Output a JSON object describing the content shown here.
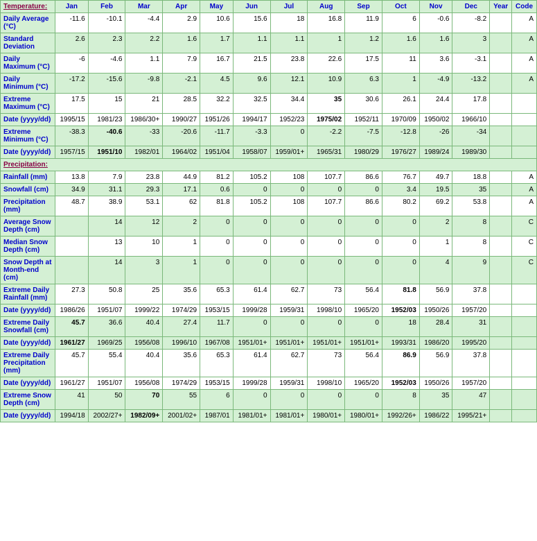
{
  "months": [
    "Jan",
    "Feb",
    "Mar",
    "Apr",
    "May",
    "Jun",
    "Jul",
    "Aug",
    "Sep",
    "Oct",
    "Nov",
    "Dec"
  ],
  "extra_cols": [
    "Year",
    "Code"
  ],
  "sections": {
    "temperature_label": "Temperature:",
    "precipitation_label": "Precipitation:"
  },
  "rows": [
    {
      "id": "daily_avg",
      "label": "Daily Average (°C)",
      "shade": false,
      "vals": [
        "-11.6",
        "-10.1",
        "-4.4",
        "2.9",
        "10.6",
        "15.6",
        "18",
        "16.8",
        "11.9",
        "6",
        "-0.6",
        "-8.2",
        "",
        "A"
      ]
    },
    {
      "id": "std_dev",
      "label": "Standard Deviation",
      "shade": true,
      "vals": [
        "2.6",
        "2.3",
        "2.2",
        "1.6",
        "1.7",
        "1.1",
        "1.1",
        "1",
        "1.2",
        "1.6",
        "1.6",
        "3",
        "",
        "A"
      ]
    },
    {
      "id": "daily_max",
      "label": "Daily Maximum (°C)",
      "shade": false,
      "vals": [
        "-6",
        "-4.6",
        "1.1",
        "7.9",
        "16.7",
        "21.5",
        "23.8",
        "22.6",
        "17.5",
        "11",
        "3.6",
        "-3.1",
        "",
        "A"
      ]
    },
    {
      "id": "daily_min",
      "label": "Daily Minimum (°C)",
      "shade": true,
      "vals": [
        "-17.2",
        "-15.6",
        "-9.8",
        "-2.1",
        "4.5",
        "9.6",
        "12.1",
        "10.9",
        "6.3",
        "1",
        "-4.9",
        "-13.2",
        "",
        "A"
      ]
    },
    {
      "id": "ext_max",
      "label": "Extreme Maximum (°C)",
      "shade": false,
      "vals": [
        "17.5",
        "15",
        "21",
        "28.5",
        "32.2",
        "32.5",
        "34.4",
        "35",
        "30.6",
        "26.1",
        "24.4",
        "17.8",
        "",
        ""
      ],
      "bold_idx": [
        7
      ]
    },
    {
      "id": "ext_max_date",
      "label": "Date (yyyy/dd)",
      "shade": false,
      "vals": [
        "1995/15",
        "1981/23",
        "1986/30+",
        "1990/27",
        "1951/26",
        "1994/17",
        "1952/23",
        "1975/02",
        "1952/11",
        "1970/09",
        "1950/02",
        "1966/10",
        "",
        ""
      ],
      "bold_idx": [
        7
      ]
    },
    {
      "id": "ext_min",
      "label": "Extreme Minimum (°C)",
      "shade": true,
      "vals": [
        "-38.3",
        "-40.6",
        "-33",
        "-20.6",
        "-11.7",
        "-3.3",
        "0",
        "-2.2",
        "-7.5",
        "-12.8",
        "-26",
        "-34",
        "",
        ""
      ],
      "bold_idx": [
        1
      ]
    },
    {
      "id": "ext_min_date",
      "label": "Date (yyyy/dd)",
      "shade": true,
      "vals": [
        "1957/15",
        "1951/10",
        "1982/01",
        "1964/02",
        "1951/04",
        "1958/07",
        "1959/01+",
        "1965/31",
        "1980/29",
        "1976/27",
        "1989/24",
        "1989/30",
        "",
        ""
      ],
      "bold_idx": [
        1
      ]
    },
    {
      "id": "rainfall",
      "label": "Rainfall (mm)",
      "shade": false,
      "vals": [
        "13.8",
        "7.9",
        "23.8",
        "44.9",
        "81.2",
        "105.2",
        "108",
        "107.7",
        "86.6",
        "76.7",
        "49.7",
        "18.8",
        "",
        "A"
      ]
    },
    {
      "id": "snowfall",
      "label": "Snowfall (cm)",
      "shade": true,
      "vals": [
        "34.9",
        "31.1",
        "29.3",
        "17.1",
        "0.6",
        "0",
        "0",
        "0",
        "0",
        "3.4",
        "19.5",
        "35",
        "",
        "A"
      ]
    },
    {
      "id": "precip",
      "label": "Precipitation (mm)",
      "shade": false,
      "vals": [
        "48.7",
        "38.9",
        "53.1",
        "62",
        "81.8",
        "105.2",
        "108",
        "107.7",
        "86.6",
        "80.2",
        "69.2",
        "53.8",
        "",
        "A"
      ]
    },
    {
      "id": "avg_snow",
      "label": "Average Snow Depth (cm)",
      "shade": true,
      "vals": [
        "",
        "14",
        "12",
        "2",
        "0",
        "0",
        "0",
        "0",
        "0",
        "0",
        "2",
        "8",
        "",
        "C"
      ]
    },
    {
      "id": "med_snow",
      "label": "Median Snow Depth (cm)",
      "shade": false,
      "vals": [
        "",
        "13",
        "10",
        "1",
        "0",
        "0",
        "0",
        "0",
        "0",
        "0",
        "1",
        "8",
        "",
        "C"
      ]
    },
    {
      "id": "end_snow",
      "label": "Snow Depth at Month-end (cm)",
      "shade": true,
      "vals": [
        "",
        "14",
        "3",
        "1",
        "0",
        "0",
        "0",
        "0",
        "0",
        "0",
        "4",
        "9",
        "",
        "C"
      ]
    },
    {
      "id": "ext_rain",
      "label": "Extreme Daily Rainfall (mm)",
      "shade": false,
      "vals": [
        "27.3",
        "50.8",
        "25",
        "35.6",
        "65.3",
        "61.4",
        "62.7",
        "73",
        "56.4",
        "81.8",
        "56.9",
        "37.8",
        "",
        ""
      ],
      "bold_idx": [
        9
      ]
    },
    {
      "id": "ext_rain_date",
      "label": "Date (yyyy/dd)",
      "shade": false,
      "vals": [
        "1986/26",
        "1951/07",
        "1999/22",
        "1974/29",
        "1953/15",
        "1999/28",
        "1959/31",
        "1998/10",
        "1965/20",
        "1952/03",
        "1950/26",
        "1957/20",
        "",
        ""
      ],
      "bold_idx": [
        9
      ]
    },
    {
      "id": "ext_snow",
      "label": "Extreme Daily Snowfall (cm)",
      "shade": true,
      "vals": [
        "45.7",
        "36.6",
        "40.4",
        "27.4",
        "11.7",
        "0",
        "0",
        "0",
        "0",
        "18",
        "28.4",
        "31",
        "",
        ""
      ],
      "bold_idx": [
        0
      ]
    },
    {
      "id": "ext_snow_date",
      "label": "Date (yyyy/dd)",
      "shade": true,
      "vals": [
        "1961/27",
        "1969/25",
        "1956/08",
        "1996/10",
        "1967/08",
        "1951/01+",
        "1951/01+",
        "1951/01+",
        "1951/01+",
        "1993/31",
        "1986/20",
        "1995/20",
        "",
        ""
      ],
      "bold_idx": [
        0
      ]
    },
    {
      "id": "ext_precip",
      "label": "Extreme Daily Precipitation (mm)",
      "shade": false,
      "vals": [
        "45.7",
        "55.4",
        "40.4",
        "35.6",
        "65.3",
        "61.4",
        "62.7",
        "73",
        "56.4",
        "86.9",
        "56.9",
        "37.8",
        "",
        ""
      ],
      "bold_idx": [
        9
      ]
    },
    {
      "id": "ext_precip_date",
      "label": "Date (yyyy/dd)",
      "shade": false,
      "vals": [
        "1961/27",
        "1951/07",
        "1956/08",
        "1974/29",
        "1953/15",
        "1999/28",
        "1959/31",
        "1998/10",
        "1965/20",
        "1952/03",
        "1950/26",
        "1957/20",
        "",
        ""
      ],
      "bold_idx": [
        9
      ]
    },
    {
      "id": "ext_depth",
      "label": "Extreme Snow Depth (cm)",
      "shade": true,
      "vals": [
        "41",
        "50",
        "70",
        "55",
        "6",
        "0",
        "0",
        "0",
        "0",
        "8",
        "35",
        "47",
        "",
        ""
      ],
      "bold_idx": [
        2
      ]
    },
    {
      "id": "ext_depth_date",
      "label": "Date (yyyy/dd)",
      "shade": true,
      "vals": [
        "1994/18",
        "2002/27+",
        "1982/09+",
        "2001/02+",
        "1987/01",
        "1981/01+",
        "1981/01+",
        "1980/01+",
        "1980/01+",
        "1992/26+",
        "1986/22",
        "1995/21+",
        "",
        ""
      ],
      "bold_idx": [
        2
      ]
    }
  ]
}
